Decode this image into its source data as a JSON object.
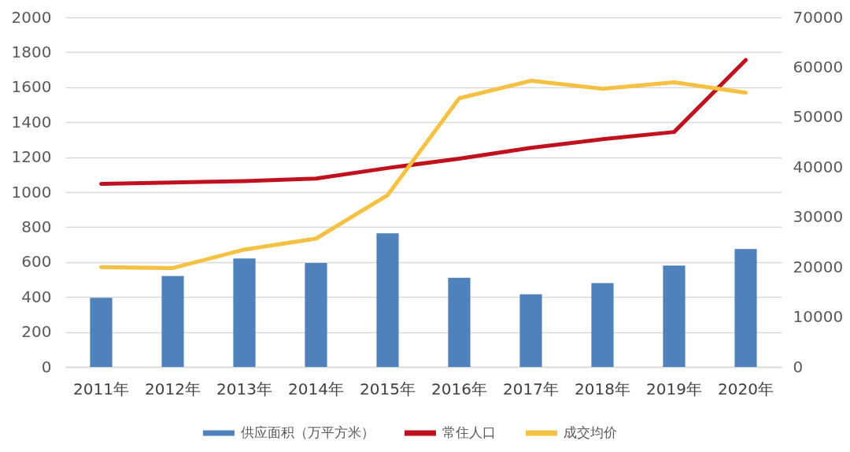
{
  "chart_data": {
    "type": "bar",
    "categories": [
      "2011年",
      "2012年",
      "2013年",
      "2014年",
      "2015年",
      "2016年",
      "2017年",
      "2018年",
      "2019年",
      "2020年"
    ],
    "series": [
      {
        "name": "供应面积（万平方米）",
        "color": "#4f81bd",
        "values": [
          395,
          520,
          620,
          595,
          765,
          510,
          415,
          480,
          580,
          675
        ]
      },
      {
        "name": "常住人口",
        "type": "line",
        "color": "#c0111f",
        "values": [
          1047,
          1055,
          1063,
          1078,
          1138,
          1191,
          1253,
          1303,
          1344,
          1756
        ]
      },
      {
        "name": "成交均价",
        "type": "line",
        "color": "#f4c142",
        "axis": "y2",
        "values": [
          20000,
          19800,
          23500,
          25700,
          34400,
          53800,
          57300,
          55700,
          57000,
          54900
        ]
      }
    ],
    "ylim": [
      0,
      2000
    ],
    "yticks": [
      0,
      200,
      400,
      600,
      800,
      1000,
      1200,
      1400,
      1600,
      1800,
      2000
    ],
    "y2lim": [
      0,
      70000
    ],
    "y2ticks": [
      0,
      10000,
      20000,
      30000,
      40000,
      50000,
      60000,
      70000
    ],
    "grid": "y",
    "legend": "bottom",
    "line_style": "solid"
  }
}
